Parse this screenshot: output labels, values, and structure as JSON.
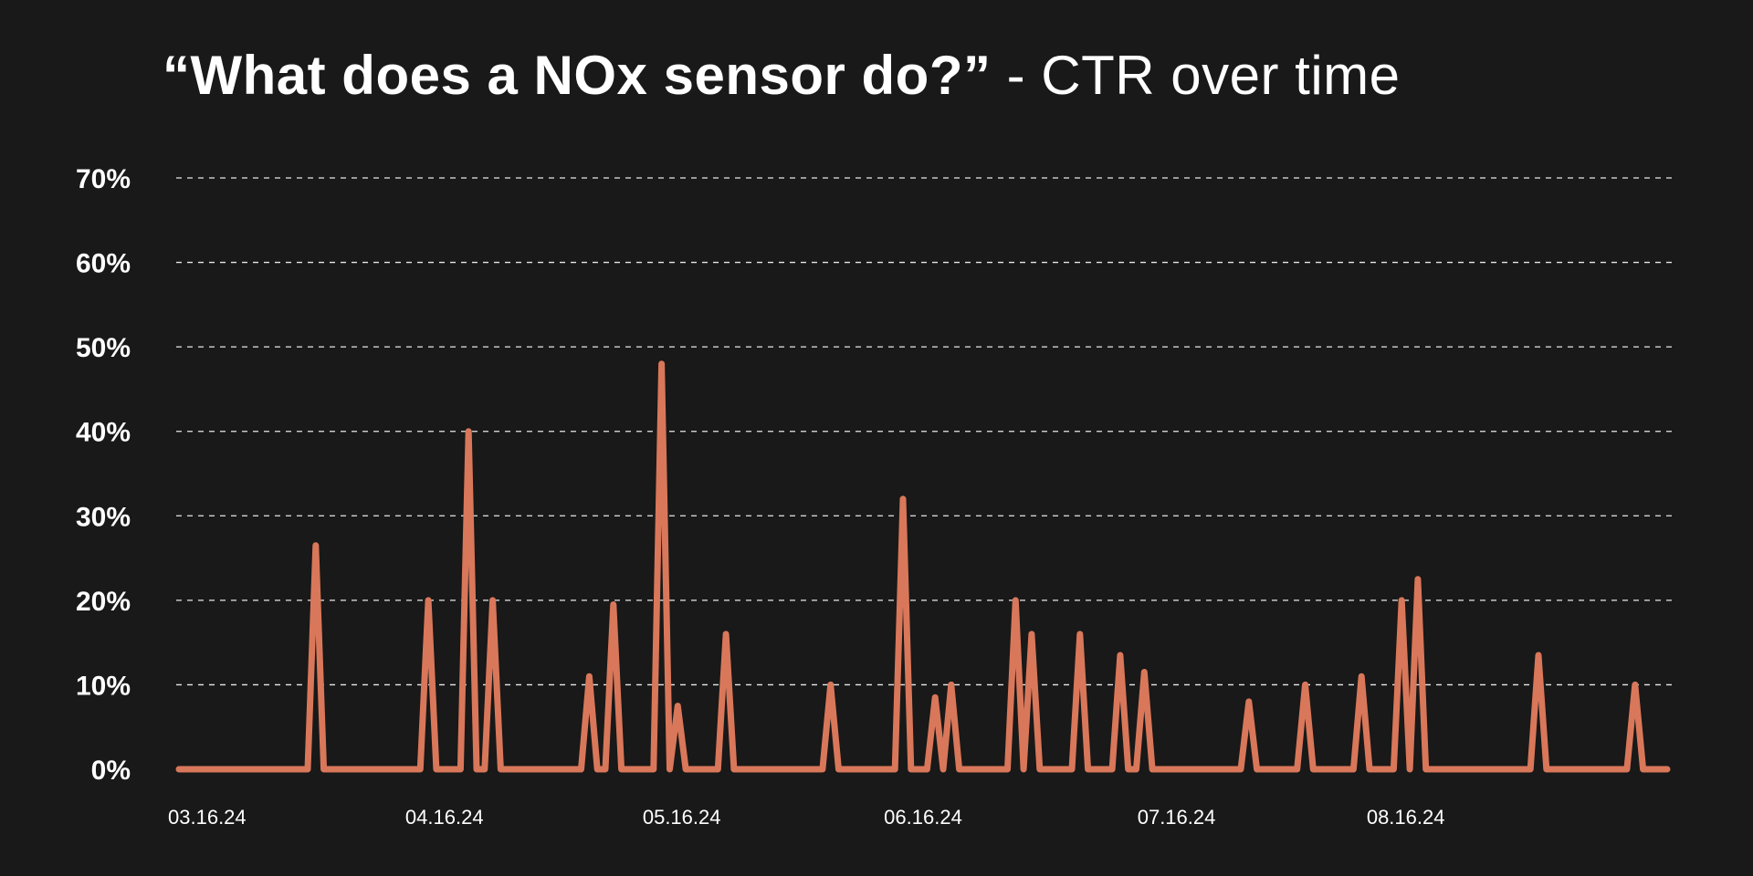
{
  "chart_data": {
    "type": "line",
    "title_bold": "“What does a NOx sensor do?”",
    "title_regular": " - CTR over time",
    "xlabel": "",
    "ylabel": "",
    "ylim": [
      0,
      70
    ],
    "xlim": [
      0,
      185
    ],
    "yticks": [
      {
        "value": 0,
        "label": "0%"
      },
      {
        "value": 10,
        "label": "10%"
      },
      {
        "value": 20,
        "label": "20%"
      },
      {
        "value": 30,
        "label": "30%"
      },
      {
        "value": 40,
        "label": "40%"
      },
      {
        "value": 50,
        "label": "50%"
      },
      {
        "value": 60,
        "label": "60%"
      },
      {
        "value": 70,
        "label": "70%"
      }
    ],
    "xticks": [
      {
        "value": 3.5,
        "label": "03.16.24"
      },
      {
        "value": 33,
        "label": "04.16.24"
      },
      {
        "value": 62.5,
        "label": "05.16.24"
      },
      {
        "value": 92.5,
        "label": "06.16.24"
      },
      {
        "value": 124,
        "label": "07.16.24"
      },
      {
        "value": 152.5,
        "label": "08.16.24"
      }
    ],
    "grid": true,
    "baseline": 0,
    "peaks": [
      [
        17,
        26.5
      ],
      [
        31,
        20
      ],
      [
        36,
        40
      ],
      [
        39,
        20
      ],
      [
        51,
        11
      ],
      [
        54,
        19.5
      ],
      [
        60,
        48
      ],
      [
        62,
        7.5
      ],
      [
        68,
        16
      ],
      [
        81,
        10
      ],
      [
        90,
        32
      ],
      [
        94,
        8.5
      ],
      [
        96,
        10
      ],
      [
        104,
        20
      ],
      [
        106,
        16
      ],
      [
        112,
        16
      ],
      [
        117,
        13.5
      ],
      [
        120,
        11.5
      ],
      [
        133,
        8
      ],
      [
        140,
        10
      ],
      [
        147,
        11
      ],
      [
        152,
        20
      ],
      [
        154,
        22.5
      ],
      [
        169,
        13.5
      ],
      [
        181,
        10
      ]
    ],
    "series": [
      {
        "name": "CTR",
        "color": "#d9775a"
      }
    ]
  }
}
